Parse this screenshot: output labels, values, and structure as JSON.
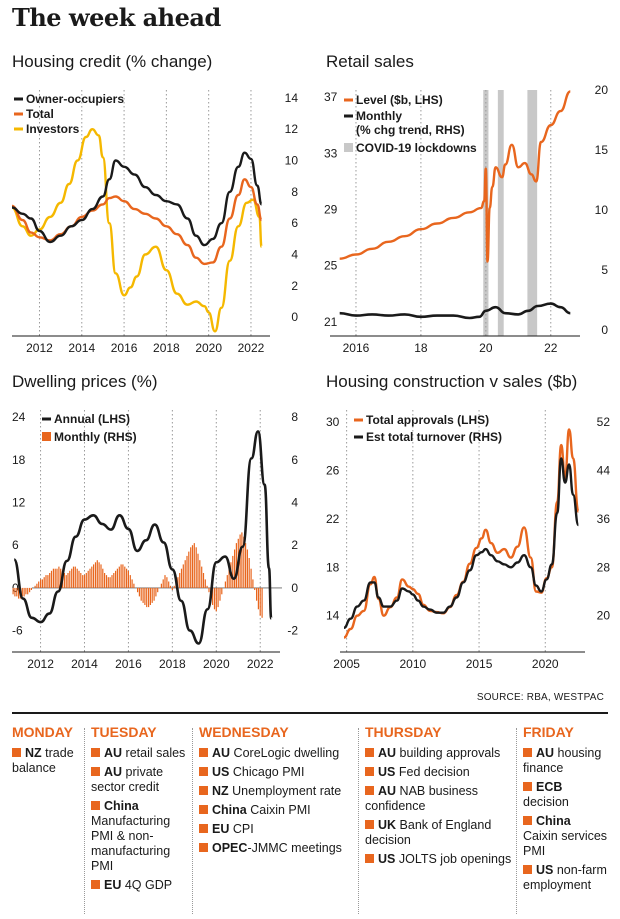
{
  "page_title": "The week ahead",
  "source": "SOURCE: RBA, WESTPAC",
  "colors": {
    "orange": "#e8661e",
    "black": "#1a1a1a",
    "yellow": "#f5b800",
    "grey": "#c8c8c8"
  },
  "chart_data": [
    {
      "id": "housing",
      "type": "line",
      "title": "Housing credit (% change)",
      "xlim": [
        2010.7,
        2022.9
      ],
      "ylim": [
        -1.2,
        14.5
      ],
      "x_ticks": [
        2012,
        2014,
        2016,
        2018,
        2020,
        2022
      ],
      "y_ticks": [
        0,
        2,
        4,
        6,
        8,
        10,
        12,
        14
      ],
      "legend": "top-left",
      "series": [
        {
          "name": "Owner-occupiers",
          "color": "#1a1a1a",
          "x": [
            2010.7,
            2011.2,
            2011.6,
            2012.0,
            2012.5,
            2013.0,
            2013.5,
            2014.0,
            2014.5,
            2015.0,
            2015.3,
            2015.6,
            2016.0,
            2016.5,
            2017.0,
            2017.5,
            2018.0,
            2018.5,
            2019.0,
            2019.4,
            2019.8,
            2020.2,
            2020.6,
            2021.0,
            2021.4,
            2021.7,
            2022.0,
            2022.3,
            2022.5
          ],
          "y": [
            7.0,
            6.6,
            6.3,
            5.5,
            4.8,
            5.2,
            5.8,
            6.2,
            6.9,
            7.7,
            8.8,
            10.0,
            9.6,
            9.1,
            8.3,
            7.8,
            7.4,
            7.2,
            6.3,
            5.2,
            4.6,
            5.0,
            6.0,
            8.0,
            9.6,
            10.5,
            10.1,
            8.4,
            7.2
          ]
        },
        {
          "name": "Total",
          "color": "#e8661e",
          "x": [
            2010.7,
            2011.2,
            2011.6,
            2012.0,
            2012.5,
            2013.0,
            2013.5,
            2014.0,
            2014.5,
            2015.0,
            2015.3,
            2015.6,
            2016.0,
            2016.5,
            2017.0,
            2017.5,
            2018.0,
            2018.5,
            2019.0,
            2019.4,
            2019.8,
            2020.2,
            2020.6,
            2021.0,
            2021.4,
            2021.7,
            2022.0,
            2022.3,
            2022.5
          ],
          "y": [
            7.1,
            6.2,
            5.4,
            5.1,
            4.9,
            5.3,
            5.8,
            6.4,
            6.8,
            7.2,
            7.6,
            7.7,
            7.4,
            6.9,
            6.6,
            6.3,
            5.8,
            5.3,
            4.6,
            3.8,
            3.4,
            3.5,
            4.5,
            6.3,
            7.8,
            8.8,
            8.3,
            7.2,
            6.2
          ]
        },
        {
          "name": "Investors",
          "color": "#f5b800",
          "x": [
            2010.7,
            2011.2,
            2011.6,
            2012.0,
            2012.5,
            2013.0,
            2013.4,
            2013.8,
            2014.2,
            2014.5,
            2014.8,
            2015.0,
            2015.3,
            2015.6,
            2016.0,
            2016.3,
            2016.6,
            2017.0,
            2017.5,
            2018.0,
            2018.5,
            2019.0,
            2019.4,
            2019.8,
            2020.0,
            2020.3,
            2020.6,
            2021.0,
            2021.4,
            2021.8,
            2022.1,
            2022.4,
            2022.5
          ],
          "y": [
            7.0,
            5.8,
            5.2,
            5.6,
            6.4,
            7.3,
            8.5,
            10.0,
            11.5,
            12.0,
            11.6,
            10.2,
            6.0,
            2.8,
            1.4,
            1.9,
            2.6,
            4.0,
            4.5,
            3.0,
            1.5,
            0.8,
            1.0,
            0.7,
            0.3,
            -0.9,
            0.6,
            3.6,
            5.8,
            7.3,
            7.5,
            6.4,
            4.5
          ]
        }
      ]
    },
    {
      "id": "retail",
      "type": "line",
      "title": "Retail sales",
      "xlim": [
        2015.2,
        2022.9
      ],
      "ylim_left": [
        20,
        37.5
      ],
      "ylim_right": [
        -0.5,
        20
      ],
      "x_ticks": [
        2016,
        2018,
        2020,
        2022
      ],
      "x_tick_labels": [
        "2016",
        "18",
        "20",
        "22"
      ],
      "y_left_ticks": [
        21,
        25,
        29,
        33,
        37
      ],
      "y_right_ticks": [
        0,
        5,
        10,
        15,
        20
      ],
      "lockdowns": [
        [
          2019.92,
          2020.08
        ],
        [
          2020.37,
          2020.55
        ],
        [
          2021.28,
          2021.58
        ]
      ],
      "legend": "top-left",
      "legend_items": [
        "Level ($b, LHS)",
        "Monthly\n(% chg trend, RHS)",
        "COVID-19 lockdowns"
      ],
      "series": [
        {
          "name": "Level ($b, LHS)",
          "color": "#e8661e",
          "axis": "left",
          "x": [
            2015.5,
            2016.0,
            2016.5,
            2017.0,
            2017.5,
            2018.0,
            2018.5,
            2019.0,
            2019.5,
            2019.85,
            2019.95,
            2020.0,
            2020.05,
            2020.12,
            2020.2,
            2020.3,
            2020.5,
            2020.6,
            2020.8,
            2021.0,
            2021.2,
            2021.4,
            2021.55,
            2021.7,
            2022.0,
            2022.3,
            2022.6
          ],
          "y": [
            25.5,
            25.8,
            26.2,
            26.7,
            27.1,
            27.6,
            28.0,
            28.4,
            28.8,
            29.1,
            29.6,
            31.9,
            25.3,
            29.1,
            30.6,
            32.0,
            31.3,
            32.2,
            33.6,
            32.0,
            32.3,
            31.5,
            31.0,
            33.8,
            35.0,
            36.0,
            37.4
          ]
        },
        {
          "name": "Monthly (% chg trend, RHS)",
          "color": "#1a1a1a",
          "axis": "right",
          "x": [
            2015.5,
            2016.0,
            2016.5,
            2017.0,
            2017.5,
            2018.0,
            2018.5,
            2019.0,
            2019.5,
            2019.8,
            2020.0,
            2020.3,
            2020.6,
            2021.0,
            2021.3,
            2021.6,
            2022.0,
            2022.3,
            2022.6
          ],
          "y": [
            1.4,
            1.2,
            1.3,
            1.2,
            1.3,
            1.1,
            1.2,
            1.2,
            1.0,
            1.1,
            1.6,
            1.9,
            1.4,
            1.3,
            1.6,
            2.0,
            2.2,
            1.9,
            1.4
          ]
        }
      ]
    },
    {
      "id": "dwelling",
      "type": "bar+line",
      "title": "Dwelling prices (%)",
      "xlim": [
        2010.7,
        2022.9
      ],
      "ylim_left": [
        -9,
        25
      ],
      "ylim_right": [
        -3,
        8.33
      ],
      "x_ticks": [
        2012,
        2014,
        2016,
        2018,
        2020,
        2022
      ],
      "y_left_ticks": [
        -6,
        0,
        6,
        12,
        18,
        24
      ],
      "y_right_ticks": [
        -2,
        0,
        2,
        4,
        6,
        8
      ],
      "legend": "top-left",
      "series": [
        {
          "name": "Annual (LHS)",
          "color": "#1a1a1a",
          "type": "line",
          "axis": "left",
          "x": [
            2010.8,
            2011.2,
            2011.6,
            2012.0,
            2012.4,
            2012.8,
            2013.2,
            2013.6,
            2014.0,
            2014.4,
            2014.8,
            2015.2,
            2015.6,
            2016.0,
            2016.4,
            2016.8,
            2017.2,
            2017.6,
            2018.0,
            2018.4,
            2018.8,
            2019.2,
            2019.6,
            2020.0,
            2020.4,
            2020.8,
            2021.2,
            2021.6,
            2021.9,
            2022.2,
            2022.4,
            2022.5
          ],
          "y": [
            4.0,
            -1.5,
            -4.2,
            -4.8,
            -3.6,
            -0.5,
            3.8,
            7.2,
            9.6,
            10.2,
            9.0,
            8.2,
            10.2,
            8.3,
            5.2,
            6.7,
            8.9,
            6.4,
            2.6,
            -1.8,
            -6.0,
            -7.8,
            -3.0,
            3.6,
            4.4,
            1.3,
            5.8,
            18.2,
            22.0,
            14.5,
            2.8,
            -4.3
          ]
        },
        {
          "name": "Monthly (RHS)",
          "color": "#e8661e",
          "type": "bar",
          "axis": "right",
          "x_start": 2010.75,
          "step": 0.0833333,
          "values": [
            -0.3,
            -0.4,
            -0.4,
            -0.5,
            -0.5,
            -0.4,
            -0.4,
            -0.3,
            -0.3,
            -0.2,
            -0.1,
            0.0,
            0.1,
            0.2,
            0.3,
            0.4,
            0.4,
            0.5,
            0.6,
            0.6,
            0.7,
            0.8,
            0.9,
            0.9,
            0.9,
            1.0,
            0.9,
            0.8,
            0.7,
            0.6,
            0.7,
            0.8,
            0.9,
            1.0,
            1.0,
            0.9,
            0.8,
            0.7,
            0.6,
            0.6,
            0.7,
            0.8,
            0.9,
            1.0,
            1.1,
            1.2,
            1.3,
            1.2,
            1.1,
            0.9,
            0.7,
            0.6,
            0.5,
            0.5,
            0.6,
            0.7,
            0.8,
            0.9,
            1.0,
            1.1,
            1.1,
            1.0,
            0.9,
            0.8,
            0.6,
            0.4,
            0.2,
            0.0,
            -0.2,
            -0.4,
            -0.6,
            -0.7,
            -0.8,
            -0.9,
            -0.9,
            -0.8,
            -0.7,
            -0.6,
            -0.4,
            -0.2,
            0.0,
            0.2,
            0.4,
            0.6,
            0.5,
            0.3,
            0.1,
            -0.1,
            0.1,
            0.3,
            0.5,
            0.7,
            0.9,
            1.1,
            1.3,
            1.5,
            1.7,
            1.9,
            2.0,
            2.1,
            1.9,
            1.6,
            1.3,
            1.0,
            0.7,
            0.4,
            0.1,
            -0.2,
            -0.5,
            -0.8,
            -1.0,
            -1.1,
            -0.9,
            -0.6,
            -0.3,
            0.0,
            0.3,
            0.6,
            0.9,
            1.2,
            1.5,
            1.8,
            2.1,
            2.3,
            2.5,
            2.6,
            2.4,
            2.1,
            1.8,
            1.4,
            0.9,
            0.4,
            -0.1,
            -0.6,
            -1.0,
            -1.3,
            -1.4
          ]
        }
      ]
    },
    {
      "id": "construction",
      "type": "line",
      "title": "Housing construction v sales ($b)",
      "xlim": [
        2004.5,
        2023.0
      ],
      "ylim_left": [
        11,
        31
      ],
      "ylim_right": [
        14,
        54
      ],
      "x_ticks": [
        2005,
        2010,
        2015,
        2020
      ],
      "y_left_ticks": [
        14,
        18,
        22,
        26,
        30
      ],
      "y_right_ticks": [
        20,
        28,
        36,
        44,
        52
      ],
      "legend": "top-left",
      "series": [
        {
          "name": "Total approvals (LHS)",
          "color": "#e8661e",
          "axis": "left",
          "x": [
            2004.8,
            2005.3,
            2005.8,
            2006.3,
            2006.8,
            2007.1,
            2007.4,
            2007.8,
            2008.3,
            2008.8,
            2009.2,
            2009.7,
            2010.0,
            2010.4,
            2010.8,
            2011.3,
            2011.8,
            2012.3,
            2012.8,
            2013.3,
            2013.8,
            2014.3,
            2014.8,
            2015.2,
            2015.5,
            2015.9,
            2016.4,
            2016.9,
            2017.4,
            2017.9,
            2018.4,
            2018.9,
            2019.3,
            2019.7,
            2020.1,
            2020.5,
            2020.9,
            2021.2,
            2021.5,
            2021.8,
            2022.1,
            2022.5
          ],
          "y": [
            12.2,
            12.9,
            14.0,
            14.4,
            16.6,
            17.2,
            15.4,
            14.0,
            14.7,
            15.5,
            17.0,
            16.4,
            16.2,
            15.8,
            14.9,
            14.4,
            14.3,
            14.2,
            14.7,
            15.7,
            16.8,
            18.3,
            19.6,
            20.4,
            21.1,
            20.0,
            19.2,
            19.5,
            18.8,
            19.7,
            21.3,
            18.8,
            16.0,
            15.9,
            17.1,
            18.0,
            23.4,
            28.1,
            25.4,
            29.4,
            27.0,
            22.6
          ]
        },
        {
          "name": "Est total turnover (RHS)",
          "color": "#1a1a1a",
          "axis": "right",
          "x": [
            2004.8,
            2005.3,
            2005.8,
            2006.3,
            2006.8,
            2007.1,
            2007.4,
            2007.8,
            2008.3,
            2008.8,
            2009.2,
            2009.7,
            2010.0,
            2010.4,
            2010.8,
            2011.3,
            2011.8,
            2012.3,
            2012.8,
            2013.3,
            2013.8,
            2014.3,
            2014.8,
            2015.2,
            2015.5,
            2015.9,
            2016.4,
            2016.9,
            2017.4,
            2017.9,
            2018.4,
            2018.9,
            2019.3,
            2019.7,
            2020.1,
            2020.5,
            2020.9,
            2021.2,
            2021.5,
            2021.8,
            2022.1,
            2022.5
          ],
          "y": [
            18.0,
            19.5,
            21.5,
            22.5,
            25.5,
            25.5,
            23.0,
            21.5,
            21.5,
            22.5,
            24.5,
            24.0,
            23.5,
            22.5,
            21.5,
            21.0,
            20.5,
            20.5,
            21.5,
            23.0,
            25.5,
            27.5,
            30.0,
            30.5,
            31.0,
            30.0,
            29.0,
            28.5,
            28.0,
            28.8,
            30.0,
            28.0,
            25.0,
            24.0,
            26.0,
            28.5,
            37.0,
            46.0,
            42.0,
            45.0,
            40.0,
            35.0
          ]
        }
      ]
    }
  ],
  "schedule": [
    {
      "day": "MONDAY",
      "events": [
        {
          "bold": "NZ",
          "text": "trade balance"
        }
      ]
    },
    {
      "day": "TUESDAY",
      "events": [
        {
          "bold": "AU",
          "text": "retail sales"
        },
        {
          "bold": "AU",
          "text": "private sector credit"
        },
        {
          "bold": "China",
          "text": "Manufacturing PMI & non-manufacturing PMI"
        },
        {
          "bold": "EU",
          "text": "4Q GDP"
        }
      ]
    },
    {
      "day": "WEDNESDAY",
      "events": [
        {
          "bold": "AU",
          "text": "CoreLogic dwelling"
        },
        {
          "bold": "US",
          "text": "Chicago PMI"
        },
        {
          "bold": "NZ",
          "text": "Unemployment rate"
        },
        {
          "bold": "China",
          "text": "Caixin PMI"
        },
        {
          "bold": "EU",
          "text": "CPI"
        },
        {
          "bold": "OPEC",
          "text": "-JMMC meetings"
        }
      ]
    },
    {
      "day": "THURSDAY",
      "events": [
        {
          "bold": "AU",
          "text": "building approvals"
        },
        {
          "bold": "US",
          "text": "Fed decision"
        },
        {
          "bold": "AU",
          "text": "NAB business confidence"
        },
        {
          "bold": "UK",
          "text": "Bank of England decision"
        },
        {
          "bold": "US",
          "text": "JOLTS job openings"
        }
      ]
    },
    {
      "day": "FRIDAY",
      "events": [
        {
          "bold": "AU",
          "text": "housing finance"
        },
        {
          "bold": "ECB",
          "text": "decision"
        },
        {
          "bold": "China",
          "text": "Caixin services PMI"
        },
        {
          "bold": "US",
          "text": "non-farm employment"
        }
      ]
    }
  ]
}
